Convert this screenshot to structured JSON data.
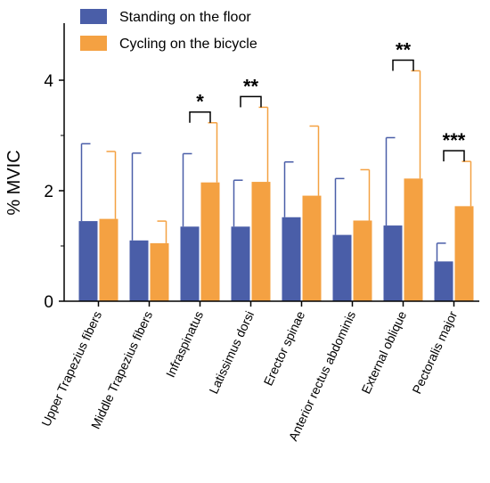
{
  "chart_data": {
    "type": "bar",
    "ylabel": "% MVIC",
    "ylim": [
      0,
      5
    ],
    "yticks": [
      0,
      2,
      4
    ],
    "grid": false,
    "legend_position": "top-center",
    "categories": [
      "Upper Trapezius fibers",
      "Middle Trapezius fibers",
      "Infraspinatus",
      "Latissimus dorsi",
      "Erector spinae",
      "Anterior rectus abdominis",
      "External oblique",
      "Pectoralis major"
    ],
    "series": [
      {
        "name": "Standing on the floor",
        "color": "#4a5ea8",
        "values": [
          1.45,
          1.1,
          1.35,
          1.35,
          1.52,
          1.2,
          1.37,
          0.72
        ],
        "error": [
          1.4,
          1.58,
          1.32,
          0.84,
          1.0,
          1.02,
          1.59,
          0.33
        ]
      },
      {
        "name": "Cycling on the bicycle",
        "color": "#f4a142",
        "values": [
          1.49,
          1.05,
          2.15,
          2.16,
          1.91,
          1.46,
          2.22,
          1.72
        ],
        "error": [
          1.22,
          0.4,
          1.08,
          1.35,
          1.26,
          0.92,
          1.95,
          0.81
        ]
      }
    ],
    "significance": [
      {
        "category_index": 2,
        "label": "*"
      },
      {
        "category_index": 3,
        "label": "**"
      },
      {
        "category_index": 6,
        "label": "**"
      },
      {
        "category_index": 7,
        "label": "***"
      }
    ]
  }
}
